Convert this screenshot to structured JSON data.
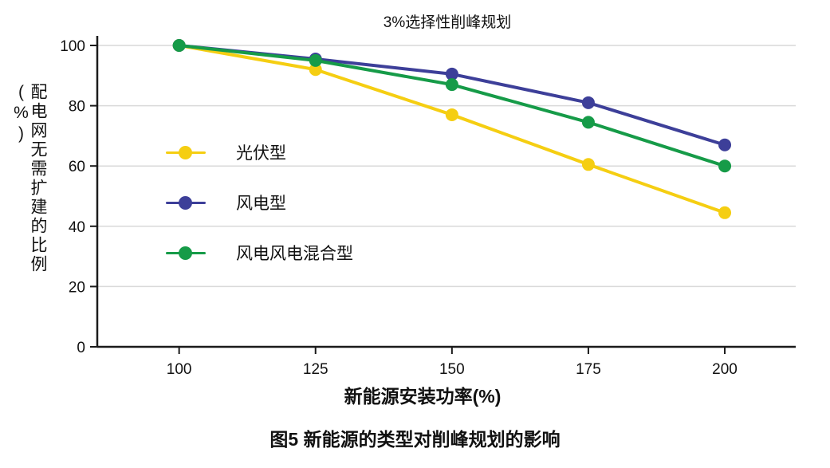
{
  "chart_data": {
    "type": "line",
    "title": "3%选择性削峰规划",
    "xlabel": "新能源安装功率(%)",
    "ylabel": "配电网无需扩建的比例(%)",
    "x": [
      100,
      125,
      150,
      175,
      200
    ],
    "xticks": [
      100,
      125,
      150,
      175,
      200
    ],
    "yticks": [
      0,
      20,
      40,
      60,
      80,
      100
    ],
    "xlim": [
      85,
      213
    ],
    "ylim": [
      0,
      100
    ],
    "grid": "horizontal",
    "legend_position": "inside-left",
    "series": [
      {
        "name": "光伏型",
        "color": "#F5CE12",
        "values": [
          100,
          92,
          77,
          60.5,
          44.5
        ]
      },
      {
        "name": "风电型",
        "color": "#3D3F99",
        "values": [
          100,
          95.5,
          90.5,
          81,
          67
        ]
      },
      {
        "name": "风电风电混合型",
        "color": "#169B48",
        "values": [
          100,
          95,
          87,
          74.5,
          60
        ]
      }
    ]
  },
  "caption": "图5  新能源的类型对削峰规划的影响",
  "style": {
    "axis_color": "#1a1a1a",
    "grid_color": "#d9d9d9",
    "text_color": "#111111",
    "background": "#ffffff"
  }
}
